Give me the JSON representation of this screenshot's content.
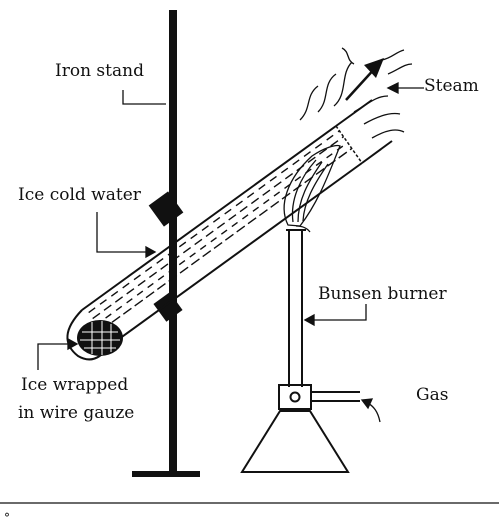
{
  "labels": {
    "iron_stand": "Iron stand",
    "steam": "Steam",
    "ice_cold_water": "Ice cold water",
    "bunsen_burner": "Bunsen burner",
    "ice_wrapped_line1": "Ice wrapped",
    "ice_wrapped_line2": "in wire gauze",
    "gas": "Gas",
    "footer_mark": "°"
  },
  "colors": {
    "ink": "#111111",
    "paper": "#ffffff"
  }
}
